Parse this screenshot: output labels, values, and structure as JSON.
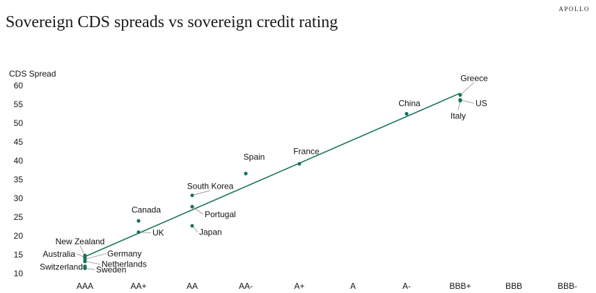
{
  "brand": "APOLLO",
  "colors": {
    "accent": "#17735a",
    "leader": "#8c8c8c",
    "text": "#111111"
  },
  "chart_data": {
    "type": "scatter",
    "title": "Sovereign CDS spreads vs sovereign credit rating",
    "xlabel": "",
    "ylabel": "CDS Spread",
    "categories": [
      "AAA",
      "AA+",
      "AA",
      "AA-",
      "A+",
      "A",
      "A-",
      "BBB+",
      "BBB",
      "BBB-"
    ],
    "ylim": [
      10,
      60
    ],
    "yticks": [
      10,
      15,
      20,
      25,
      30,
      35,
      40,
      45,
      50,
      55,
      60
    ],
    "grid": false,
    "trendline": {
      "from": [
        "AAA",
        14.5
      ],
      "to": [
        "BBB+",
        58
      ]
    },
    "points": [
      {
        "label": "Greece",
        "rating": "BBB+",
        "value": 57.5
      },
      {
        "label": "US",
        "rating": "BBB+",
        "value": 56.2
      },
      {
        "label": "Italy",
        "rating": "BBB+",
        "value": 56
      },
      {
        "label": "China",
        "rating": "A-",
        "value": 52.5
      },
      {
        "label": "France",
        "rating": "A+",
        "value": 39.2
      },
      {
        "label": "Spain",
        "rating": "AA-",
        "value": 36.6
      },
      {
        "label": "South Korea",
        "rating": "AA",
        "value": 30.8
      },
      {
        "label": "Portugal",
        "rating": "AA",
        "value": 27.8
      },
      {
        "label": "Japan",
        "rating": "AA",
        "value": 22.7
      },
      {
        "label": "Canada",
        "rating": "AA+",
        "value": 24
      },
      {
        "label": "UK",
        "rating": "AA+",
        "value": 21
      },
      {
        "label": "New Zealand",
        "rating": "AAA",
        "value": 14.8
      },
      {
        "label": "Australia",
        "rating": "AAA",
        "value": 14.3
      },
      {
        "label": "Germany",
        "rating": "AAA",
        "value": 13.8
      },
      {
        "label": "Netherlands",
        "rating": "AAA",
        "value": 13.2
      },
      {
        "label": "Switzerland",
        "rating": "AAA",
        "value": 11.9
      },
      {
        "label": "Sweden",
        "rating": "AAA",
        "value": 11.4
      }
    ]
  }
}
